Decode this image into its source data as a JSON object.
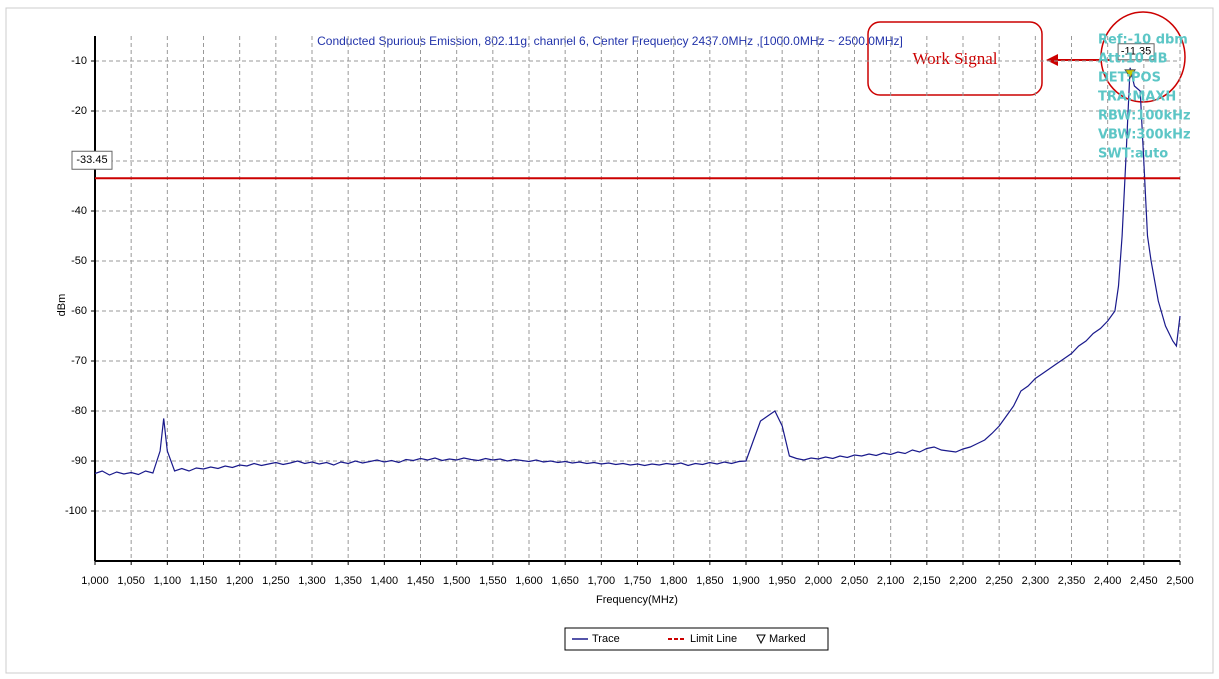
{
  "chart_data": {
    "type": "line",
    "title": "Conducted Spurious Emission, 802.11g, channel 6, Center Frequency 2437.0MHz ,[1000.0MHz ~ 2500.0MHz]",
    "x_label": "Frequency(MHz)",
    "y_label": "dBm",
    "xlim": [
      1000,
      2500
    ],
    "ylim": [
      -110,
      -5
    ],
    "grid": true,
    "legend": "bottom",
    "yticks": [
      -10,
      -20,
      -30,
      -40,
      -50,
      -60,
      -70,
      -80,
      -90,
      -100
    ],
    "xticks": [
      {
        "value": 1000,
        "label": "1,000"
      },
      {
        "value": 1050,
        "label": "1,050"
      },
      {
        "value": 1100,
        "label": "1,100"
      },
      {
        "value": 1150,
        "label": "1,150"
      },
      {
        "value": 1200,
        "label": "1,200"
      },
      {
        "value": 1250,
        "label": "1,250"
      },
      {
        "value": 1300,
        "label": "1,300"
      },
      {
        "value": 1350,
        "label": "1,350"
      },
      {
        "value": 1400,
        "label": "1,400"
      },
      {
        "value": 1450,
        "label": "1,450"
      },
      {
        "value": 1500,
        "label": "1,500"
      },
      {
        "value": 1550,
        "label": "1,550"
      },
      {
        "value": 1600,
        "label": "1,600"
      },
      {
        "value": 1650,
        "label": "1,650"
      },
      {
        "value": 1700,
        "label": "1,700"
      },
      {
        "value": 1750,
        "label": "1,750"
      },
      {
        "value": 1800,
        "label": "1,800"
      },
      {
        "value": 1850,
        "label": "1,850"
      },
      {
        "value": 1900,
        "label": "1,900"
      },
      {
        "value": 1950,
        "label": "1,950"
      },
      {
        "value": 2000,
        "label": "2,000"
      },
      {
        "value": 2050,
        "label": "2,050"
      },
      {
        "value": 2100,
        "label": "2,100"
      },
      {
        "value": 2150,
        "label": "2,150"
      },
      {
        "value": 2200,
        "label": "2,200"
      },
      {
        "value": 2250,
        "label": "2,250"
      },
      {
        "value": 2300,
        "label": "2,300"
      },
      {
        "value": 2350,
        "label": "2,350"
      },
      {
        "value": 2400,
        "label": "2,400"
      },
      {
        "value": 2450,
        "label": "2,450"
      },
      {
        "value": 2500,
        "label": "2,500"
      }
    ],
    "x": [
      1000,
      1010,
      1020,
      1030,
      1040,
      1050,
      1060,
      1070,
      1080,
      1090,
      1095,
      1100,
      1110,
      1120,
      1130,
      1140,
      1150,
      1160,
      1170,
      1180,
      1190,
      1200,
      1210,
      1220,
      1230,
      1240,
      1250,
      1260,
      1270,
      1280,
      1290,
      1300,
      1310,
      1320,
      1330,
      1340,
      1350,
      1360,
      1370,
      1380,
      1390,
      1400,
      1410,
      1420,
      1430,
      1440,
      1450,
      1460,
      1470,
      1480,
      1490,
      1500,
      1510,
      1520,
      1530,
      1540,
      1550,
      1560,
      1570,
      1580,
      1590,
      1600,
      1610,
      1620,
      1630,
      1640,
      1650,
      1660,
      1670,
      1680,
      1690,
      1700,
      1710,
      1720,
      1730,
      1740,
      1750,
      1760,
      1770,
      1780,
      1790,
      1800,
      1810,
      1820,
      1830,
      1840,
      1850,
      1860,
      1870,
      1880,
      1890,
      1900,
      1910,
      1920,
      1930,
      1940,
      1950,
      1960,
      1970,
      1980,
      1990,
      2000,
      2010,
      2020,
      2030,
      2040,
      2050,
      2060,
      2070,
      2080,
      2090,
      2100,
      2110,
      2120,
      2130,
      2140,
      2150,
      2160,
      2170,
      2180,
      2190,
      2200,
      2210,
      2220,
      2230,
      2240,
      2250,
      2260,
      2270,
      2280,
      2290,
      2300,
      2310,
      2320,
      2330,
      2340,
      2350,
      2360,
      2370,
      2380,
      2390,
      2400,
      2410,
      2415,
      2420,
      2425,
      2431,
      2437,
      2445,
      2450,
      2455,
      2460,
      2470,
      2480,
      2490,
      2495,
      2500
    ],
    "series": [
      {
        "name": "Trace",
        "color": "#1a1a8c",
        "values": [
          -92.5,
          -92,
          -92.8,
          -92.2,
          -92.6,
          -92.3,
          -92.7,
          -92,
          -92.4,
          -88,
          -81.5,
          -88,
          -92,
          -91.5,
          -92,
          -91.4,
          -91.6,
          -91.2,
          -91.5,
          -91,
          -91.3,
          -90.8,
          -91,
          -90.5,
          -90.9,
          -90.6,
          -90.3,
          -90.7,
          -90.4,
          -90,
          -90.5,
          -90.2,
          -90.6,
          -90.3,
          -90.8,
          -90.2,
          -90.5,
          -90,
          -90.4,
          -90.1,
          -89.8,
          -90.2,
          -89.9,
          -90.3,
          -89.7,
          -89.9,
          -89.5,
          -89.8,
          -89.4,
          -89.9,
          -89.6,
          -89.8,
          -89.4,
          -89.7,
          -89.9,
          -89.5,
          -89.8,
          -89.6,
          -90,
          -89.7,
          -89.9,
          -90.1,
          -89.8,
          -90.2,
          -90,
          -90.3,
          -90.1,
          -90.4,
          -90.2,
          -90.5,
          -90.3,
          -90.6,
          -90.4,
          -90.7,
          -90.5,
          -90.8,
          -90.6,
          -90.9,
          -90.6,
          -90.8,
          -90.5,
          -90.7,
          -90.4,
          -90.9,
          -90.5,
          -90.7,
          -90.3,
          -90.6,
          -90.2,
          -90.5,
          -90.1,
          -90,
          -86,
          -82,
          -81,
          -80,
          -83,
          -89,
          -89.5,
          -89.8,
          -89.4,
          -89.6,
          -89.2,
          -89.5,
          -89,
          -89.3,
          -88.8,
          -89,
          -88.6,
          -88.9,
          -88.4,
          -88.7,
          -88.2,
          -88.5,
          -87.8,
          -88.2,
          -87.5,
          -87.2,
          -87.8,
          -88,
          -88.2,
          -87.6,
          -87.2,
          -86.5,
          -85.8,
          -84.5,
          -83,
          -81,
          -79,
          -76,
          -75,
          -73.5,
          -72.5,
          -71.5,
          -70.5,
          -69.5,
          -68.5,
          -67,
          -66,
          -64.5,
          -63.5,
          -62,
          -60,
          -55,
          -45,
          -30,
          -11.35,
          -15,
          -16,
          -30,
          -45,
          -50,
          -58,
          -63,
          -66,
          -67,
          -61
        ]
      }
    ],
    "limit_line": {
      "name": "Limit Line",
      "value": -33.45,
      "color": "#cc0000"
    },
    "marker": {
      "name": "Marked",
      "x": 2431,
      "value": -11.35,
      "color": "#c8c800"
    },
    "settings": [
      "Ref:-10 dbm",
      "Att:10 dB",
      "DET:POS",
      "TRA:MAXH",
      "RBW:100kHz",
      "VBW:300kHz",
      "SWT:auto"
    ],
    "annotation": "Work Signal"
  }
}
